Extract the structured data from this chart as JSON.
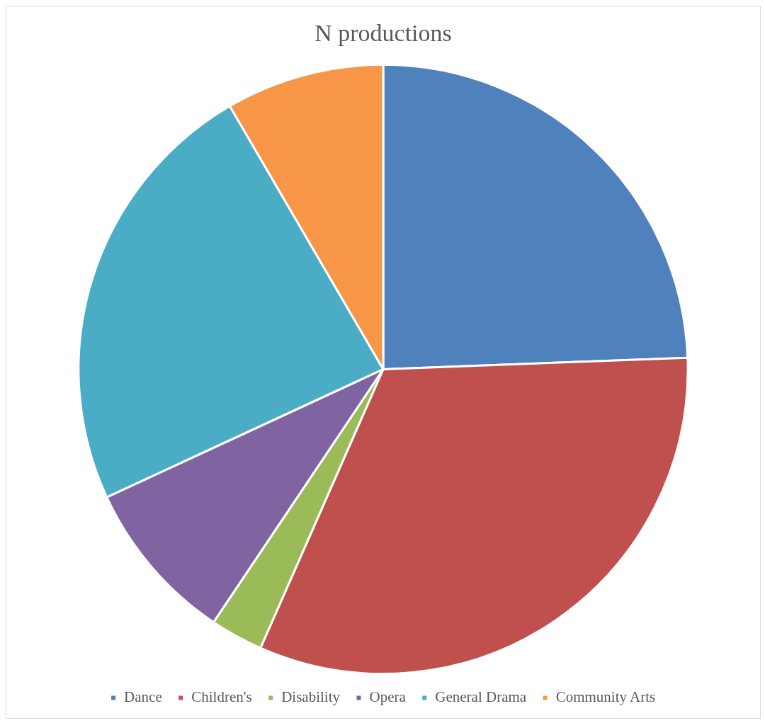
{
  "chart_data": {
    "type": "pie",
    "title": "N productions",
    "categories": [
      "Dance",
      "Children's",
      "Disability",
      "Opera",
      "General Drama",
      "Community Arts"
    ],
    "values": [
      24.4,
      32.2,
      2.8,
      8.7,
      23.5,
      8.4
    ],
    "colors": [
      "#4f81bd",
      "#c0504d",
      "#9bbb59",
      "#8064a2",
      "#4bacc6",
      "#f79646"
    ],
    "legend": "bottom"
  }
}
